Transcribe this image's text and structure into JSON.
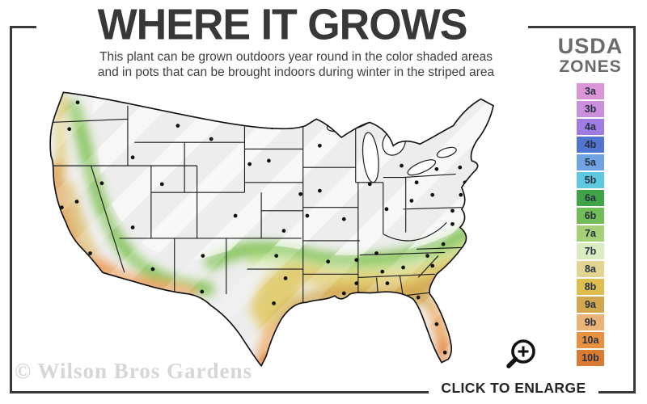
{
  "header": {
    "title": "WHERE IT GROWS",
    "subtitle_line1": "This plant can be grown outdoors year round in the color shaded areas",
    "subtitle_line2": "and in pots that can be brought indoors during winter in the striped area"
  },
  "legend": {
    "title_line1": "USDA",
    "title_line2": "ZONES",
    "zones": [
      {
        "zone": "3a",
        "color": "#db96d8"
      },
      {
        "zone": "3b",
        "color": "#cc8fdc"
      },
      {
        "zone": "4a",
        "color": "#9f7ce2"
      },
      {
        "zone": "4b",
        "color": "#5276d0"
      },
      {
        "zone": "5a",
        "color": "#6fa3e3"
      },
      {
        "zone": "5b",
        "color": "#5ec8e0"
      },
      {
        "zone": "6a",
        "color": "#41a348"
      },
      {
        "zone": "6b",
        "color": "#72bd57"
      },
      {
        "zone": "7a",
        "color": "#a6d077"
      },
      {
        "zone": "7b",
        "color": "#d9ecc2"
      },
      {
        "zone": "8a",
        "color": "#e3d492"
      },
      {
        "zone": "8b",
        "color": "#ddbe4e"
      },
      {
        "zone": "9a",
        "color": "#d2a84f"
      },
      {
        "zone": "9b",
        "color": "#eab377"
      },
      {
        "zone": "10a",
        "color": "#e89140"
      },
      {
        "zone": "10b",
        "color": "#d97a33"
      }
    ]
  },
  "actions": {
    "enlarge_label": "CLICK TO ENLARGE",
    "enlarge_icon": "magnifier-plus-icon"
  },
  "watermark": "© Wilson Bros Gardens",
  "colors": {
    "frame": "#3a3a3a",
    "map_base_gray": "#ededed",
    "title_text": "#383838",
    "legend_title_text": "#6b6b6b",
    "watermark_text": "#d6d6d6"
  }
}
